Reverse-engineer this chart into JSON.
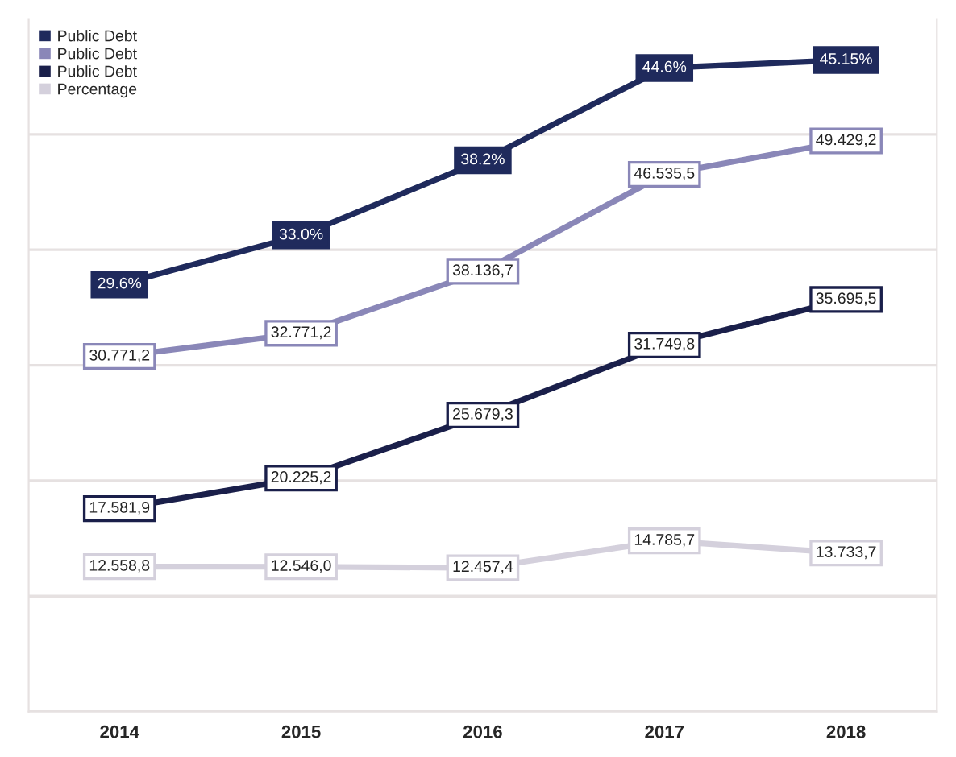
{
  "chart_data": {
    "type": "line",
    "categories": [
      "2014",
      "2015",
      "2016",
      "2017",
      "2018"
    ],
    "series": [
      {
        "name": "Public Debt",
        "color": "#1f2a5c",
        "axis": "y2",
        "values": [
          29.6,
          33.0,
          38.2,
          44.6,
          45.15
        ],
        "value_labels": [
          "29.6%",
          "33.0%",
          "38.2%",
          "44.6%",
          "45.15%"
        ]
      },
      {
        "name": "Public Debt",
        "color": "#8a87b8",
        "values": [
          30771.2,
          32771.2,
          38136.7,
          46535.5,
          49429.2
        ],
        "value_labels": [
          "30.771,2",
          "32.771,2",
          "38.136,7",
          "46.535,5",
          "49.429,2"
        ]
      },
      {
        "name": "Public Debt",
        "color": "#1a1f4a",
        "values": [
          17581.9,
          20225.2,
          25679.3,
          31749.8,
          35695.5
        ],
        "value_labels": [
          "17.581,9",
          "20.225,2",
          "25.679,3",
          "31.749,8",
          "35.695,5"
        ]
      },
      {
        "name": "Percentage",
        "color": "#d4d0dc",
        "values": [
          12558.8,
          12546.0,
          12457.4,
          14785.7,
          13733.7
        ],
        "value_labels": [
          "12.558,8",
          "12.546,0",
          "12.457,4",
          "14.785,7",
          "13.733,7"
        ]
      }
    ],
    "ylim": [
      0,
      60000
    ],
    "yticks": [
      {
        "value": 0,
        "label": null
      },
      {
        "value": 10000,
        "label": null
      },
      {
        "value": 20000,
        "label": null
      },
      {
        "value": 30000,
        "label": null
      },
      {
        "value": 40000,
        "label": null
      },
      {
        "value": 50000,
        "label": null
      }
    ],
    "y2lim": [
      0,
      48
    ],
    "tick_labels": "x",
    "grid": "y",
    "legend": "top left",
    "marker": "square",
    "line_style": "solid"
  }
}
